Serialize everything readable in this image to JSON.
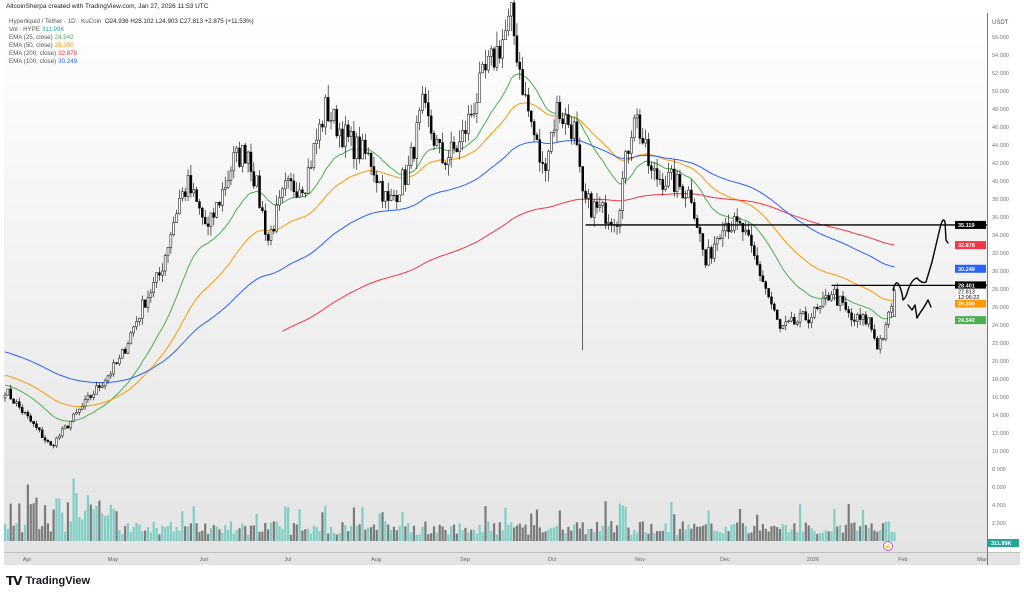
{
  "header": {
    "attribution": "AltcoinSherpa created with TradingView.com, Jan 27, 2026 11:53 UTC"
  },
  "legend": {
    "symbol": "Hyperliquid / Tether · 1D · KuCoin",
    "ohlc": "O24.936  H28.102  L24.903  C27.813  +2.875 (+11.53%)",
    "volume_label": "Vol · HYPE",
    "volume_value": "311.99K",
    "indicators": [
      {
        "label": "EMA (25, close)",
        "value": "24.542",
        "color": "#4caf50",
        "length": 25
      },
      {
        "label": "EMA (50, close)",
        "value": "26.390",
        "color": "#ff9800",
        "length": 50
      },
      {
        "label": "EMA (200, close)",
        "value": "32.878",
        "color": "#f23645",
        "length": 200
      },
      {
        "label": "EMA (100, close)",
        "value": "30.249",
        "color": "#2962ff",
        "length": 100
      }
    ]
  },
  "price_axis": {
    "currency": "USDT",
    "ticks": [
      "56.000",
      "54.000",
      "52.000",
      "50.000",
      "48.000",
      "46.000",
      "44.000",
      "42.000",
      "40.000",
      "38.000",
      "36.000",
      "34.000",
      "32.000",
      "30.000",
      "28.000",
      "26.000",
      "24.000",
      "22.000",
      "20.000",
      "18.000",
      "16.000",
      "14.000",
      "12.000",
      "10.000",
      "8.000",
      "6.000",
      "4.000",
      "2.000"
    ],
    "badges": [
      {
        "value": "35.119",
        "price": 35.119,
        "color": "#000000"
      },
      {
        "value": "32.878",
        "price": 32.878,
        "color": "#f23645"
      },
      {
        "value": "30.249",
        "price": 30.249,
        "color": "#2962ff"
      },
      {
        "value": "28.401",
        "price": 28.401,
        "color": "#000000"
      },
      {
        "value": "26.390",
        "price": 26.39,
        "color": "#ff9800"
      },
      {
        "value": "24.542",
        "price": 24.542,
        "color": "#4caf50"
      }
    ],
    "last_price": "27.813",
    "countdown": "12:06:22",
    "volume_badge": "311.99K"
  },
  "time_axis": {
    "labels": [
      "Apr",
      "May",
      "Jun",
      "Jul",
      "Aug",
      "Sep",
      "Oct",
      "Nov",
      "Dec",
      "2026",
      "Feb",
      "Mar"
    ]
  },
  "chart_data": {
    "type": "candlestick",
    "symbol": "HYPE/USDT",
    "interval": "1D",
    "ylim": [
      0,
      57
    ],
    "x_range": [
      "2025-03-22",
      "2026-03-05"
    ],
    "grid": false,
    "colors": {
      "up_candle": "#ffffff",
      "down_candle": "#000000",
      "volume_up": "#7fcec5",
      "volume_down": "#7a7a7a"
    },
    "approx_closes": [
      [
        "2025-03-22",
        16.8
      ],
      [
        "2025-04-07",
        10.5
      ],
      [
        "2025-04-12",
        12.5
      ],
      [
        "2025-04-20",
        15.7
      ],
      [
        "2025-05-01",
        20
      ],
      [
        "2025-05-10",
        26.8
      ],
      [
        "2025-05-15",
        29.5
      ],
      [
        "2025-05-22",
        38
      ],
      [
        "2025-05-25",
        39.5
      ],
      [
        "2025-06-01",
        34.5
      ],
      [
        "2025-06-10",
        42.3
      ],
      [
        "2025-06-15",
        43.5
      ],
      [
        "2025-06-22",
        33.5
      ],
      [
        "2025-06-28",
        39
      ],
      [
        "2025-07-05",
        40
      ],
      [
        "2025-07-12",
        48
      ],
      [
        "2025-07-20",
        44.5
      ],
      [
        "2025-07-28",
        42.3
      ],
      [
        "2025-08-03",
        37.3
      ],
      [
        "2025-08-10",
        41.2
      ],
      [
        "2025-08-15",
        48
      ],
      [
        "2025-08-22",
        42.3
      ],
      [
        "2025-08-28",
        44
      ],
      [
        "2025-09-05",
        51.2
      ],
      [
        "2025-09-12",
        55.7
      ],
      [
        "2025-09-15",
        58
      ],
      [
        "2025-09-20",
        49
      ],
      [
        "2025-09-26",
        41.2
      ],
      [
        "2025-10-01",
        48
      ],
      [
        "2025-10-07",
        45.7
      ],
      [
        "2025-10-10",
        37.8
      ],
      [
        "2025-10-15",
        36.8
      ],
      [
        "2025-10-22",
        36
      ],
      [
        "2025-10-28",
        48
      ],
      [
        "2025-11-03",
        40.7
      ],
      [
        "2025-11-10",
        40
      ],
      [
        "2025-11-17",
        38.5
      ],
      [
        "2025-11-22",
        30.7
      ],
      [
        "2025-11-28",
        35.7
      ],
      [
        "2025-12-05",
        34.5
      ],
      [
        "2025-12-12",
        29
      ],
      [
        "2025-12-18",
        23.4
      ],
      [
        "2025-12-25",
        24.5
      ],
      [
        "2026-01-01",
        25.6
      ],
      [
        "2026-01-05",
        27.9
      ],
      [
        "2026-01-12",
        24.5
      ],
      [
        "2026-01-18",
        24.5
      ],
      [
        "2026-01-21",
        21.8
      ],
      [
        "2026-01-24",
        23.4
      ],
      [
        "2026-01-27",
        27.813
      ]
    ],
    "notable_wick_low": [
      "2025-10-10",
      21.2
    ],
    "horizontal_levels": [
      {
        "price": 35.119,
        "from": "2025-10-11"
      },
      {
        "price": 28.401,
        "from": "2026-01-05"
      }
    ]
  },
  "footer": {
    "brand": "TradingView"
  }
}
